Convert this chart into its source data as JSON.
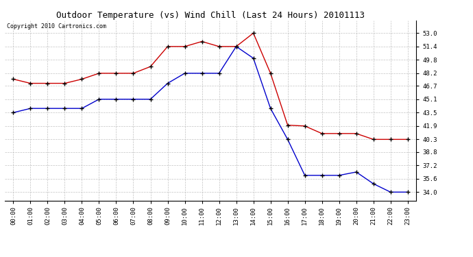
{
  "title": "Outdoor Temperature (vs) Wind Chill (Last 24 Hours) 20101113",
  "copyright": "Copyright 2010 Cartronics.com",
  "hours": [
    "00:00",
    "01:00",
    "02:00",
    "03:00",
    "04:00",
    "05:00",
    "06:00",
    "07:00",
    "08:00",
    "09:00",
    "10:00",
    "11:00",
    "12:00",
    "13:00",
    "14:00",
    "15:00",
    "16:00",
    "17:00",
    "18:00",
    "19:00",
    "20:00",
    "21:00",
    "22:00",
    "23:00"
  ],
  "temp_red": [
    47.5,
    47.0,
    47.0,
    47.0,
    47.5,
    48.2,
    48.2,
    48.2,
    49.0,
    51.4,
    51.4,
    52.0,
    51.4,
    51.4,
    53.0,
    48.2,
    42.0,
    41.9,
    41.0,
    41.0,
    41.0,
    40.3,
    40.3,
    40.3
  ],
  "temp_blue": [
    43.5,
    44.0,
    44.0,
    44.0,
    44.0,
    45.1,
    45.1,
    45.1,
    45.1,
    47.0,
    48.2,
    48.2,
    48.2,
    51.4,
    50.0,
    44.0,
    40.3,
    36.0,
    36.0,
    36.0,
    36.4,
    35.0,
    34.0,
    34.0
  ],
  "ylim": [
    33.0,
    54.5
  ],
  "yticks": [
    34.0,
    35.6,
    37.2,
    38.8,
    40.3,
    41.9,
    43.5,
    45.1,
    46.7,
    48.2,
    49.8,
    51.4,
    53.0
  ],
  "red_color": "#cc0000",
  "blue_color": "#0000cc",
  "bg_color": "#ffffff",
  "grid_color": "#bbbbbb",
  "title_fontsize": 9,
  "copyright_fontsize": 6,
  "tick_fontsize": 6.5,
  "linewidth": 1.0,
  "markersize": 4
}
